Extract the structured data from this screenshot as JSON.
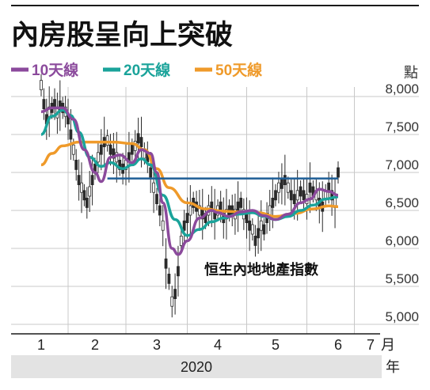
{
  "chart_data": {
    "type": "line",
    "title": "內房股呈向上突破",
    "ylabel": "點",
    "ylim": [
      5000,
      8000
    ],
    "yticks": [
      "8,000",
      "7,500",
      "7,000",
      "6,500",
      "6,000",
      "5,500",
      "5,000"
    ],
    "ytick_values": [
      8000,
      7500,
      7000,
      6500,
      6000,
      5500,
      5000
    ],
    "xticks": [
      "1",
      "2",
      "3",
      "4",
      "5",
      "6",
      "7"
    ],
    "month_unit": "月",
    "year_label": "2020",
    "year_unit": "年",
    "annotation": "恒生內地地產指數",
    "resistance_level": 6920,
    "grid": true,
    "legend_position": "top-left",
    "colors": {
      "ma10": "#8b4a9c",
      "ma20": "#1aa39a",
      "ma50": "#ef9a2a",
      "resistance": "#1e5e96",
      "candles": "#2b2b2b",
      "grid": "#c8c8c8",
      "band": "#e3e3e3"
    },
    "series": [
      {
        "name": "10天線",
        "key": "ma10",
        "points": [
          [
            0,
            7800
          ],
          [
            0.2,
            7850
          ],
          [
            0.4,
            7850
          ],
          [
            0.6,
            7700
          ],
          [
            0.8,
            7300
          ],
          [
            1.0,
            7000
          ],
          [
            1.1,
            6880
          ],
          [
            1.25,
            7200
          ],
          [
            1.4,
            7230
          ],
          [
            1.6,
            7130
          ],
          [
            1.75,
            7300
          ],
          [
            1.9,
            7250
          ],
          [
            2.0,
            7000
          ],
          [
            2.1,
            6600
          ],
          [
            2.25,
            6000
          ],
          [
            2.35,
            5920
          ],
          [
            2.5,
            6100
          ],
          [
            2.7,
            6400
          ],
          [
            2.9,
            6500
          ],
          [
            3.0,
            6470
          ],
          [
            3.2,
            6420
          ],
          [
            3.4,
            6480
          ],
          [
            3.6,
            6500
          ],
          [
            3.8,
            6430
          ],
          [
            4.0,
            6380
          ],
          [
            4.2,
            6450
          ],
          [
            4.4,
            6600
          ],
          [
            4.55,
            6650
          ],
          [
            4.7,
            6780
          ],
          [
            4.85,
            6750
          ],
          [
            5.0,
            6700
          ]
        ]
      },
      {
        "name": "20天線",
        "key": "ma20",
        "points": [
          [
            0,
            7500
          ],
          [
            0.2,
            7740
          ],
          [
            0.4,
            7820
          ],
          [
            0.55,
            7750
          ],
          [
            0.7,
            7530
          ],
          [
            0.9,
            7200
          ],
          [
            1.1,
            7080
          ],
          [
            1.25,
            7130
          ],
          [
            1.45,
            7050
          ],
          [
            1.6,
            7100
          ],
          [
            1.75,
            7180
          ],
          [
            1.9,
            7100
          ],
          [
            2.1,
            6700
          ],
          [
            2.3,
            6380
          ],
          [
            2.5,
            6170
          ],
          [
            2.7,
            6250
          ],
          [
            2.9,
            6350
          ],
          [
            3.1,
            6400
          ],
          [
            3.35,
            6450
          ],
          [
            3.6,
            6470
          ],
          [
            3.8,
            6420
          ],
          [
            4.0,
            6380
          ],
          [
            4.2,
            6420
          ],
          [
            4.4,
            6500
          ],
          [
            4.6,
            6570
          ],
          [
            4.8,
            6650
          ],
          [
            5.0,
            6680
          ]
        ]
      },
      {
        "name": "50天線",
        "key": "ma50",
        "points": [
          [
            0,
            7100
          ],
          [
            0.2,
            7250
          ],
          [
            0.4,
            7350
          ],
          [
            0.7,
            7400
          ],
          [
            1.0,
            7400
          ],
          [
            1.3,
            7400
          ],
          [
            1.6,
            7380
          ],
          [
            1.8,
            7300
          ],
          [
            2.0,
            7050
          ],
          [
            2.2,
            6800
          ],
          [
            2.5,
            6600
          ],
          [
            2.8,
            6520
          ],
          [
            3.1,
            6490
          ],
          [
            3.4,
            6480
          ],
          [
            3.7,
            6470
          ],
          [
            4.0,
            6420
          ],
          [
            4.3,
            6460
          ],
          [
            4.6,
            6520
          ],
          [
            4.85,
            6560
          ],
          [
            5.0,
            6550
          ]
        ]
      }
    ],
    "candles": [
      [
        0.0,
        8150
      ],
      [
        0.05,
        7900
      ],
      [
        0.1,
        7700
      ],
      [
        0.15,
        7800
      ],
      [
        0.2,
        7850
      ],
      [
        0.25,
        7900
      ],
      [
        0.3,
        7780
      ],
      [
        0.35,
        7880
      ],
      [
        0.4,
        7850
      ],
      [
        0.45,
        7800
      ],
      [
        0.5,
        7700
      ],
      [
        0.55,
        7500
      ],
      [
        0.6,
        7300
      ],
      [
        0.65,
        7100
      ],
      [
        0.7,
        6900
      ],
      [
        0.75,
        6800
      ],
      [
        0.8,
        6700
      ],
      [
        0.85,
        6600
      ],
      [
        0.9,
        6750
      ],
      [
        0.95,
        6900
      ],
      [
        1.0,
        7050
      ],
      [
        1.05,
        7200
      ],
      [
        1.1,
        7300
      ],
      [
        1.15,
        7400
      ],
      [
        1.2,
        7420
      ],
      [
        1.25,
        7300
      ],
      [
        1.3,
        7250
      ],
      [
        1.35,
        7200
      ],
      [
        1.4,
        7100
      ],
      [
        1.45,
        7050
      ],
      [
        1.5,
        7100
      ],
      [
        1.55,
        7200
      ],
      [
        1.6,
        7300
      ],
      [
        1.65,
        7350
      ],
      [
        1.7,
        7450
      ],
      [
        1.75,
        7400
      ],
      [
        1.8,
        7250
      ],
      [
        1.85,
        7200
      ],
      [
        1.9,
        7000
      ],
      [
        1.95,
        6800
      ],
      [
        2.0,
        6650
      ],
      [
        2.05,
        6500
      ],
      [
        2.1,
        6300
      ],
      [
        2.15,
        5800
      ],
      [
        2.2,
        5600
      ],
      [
        2.25,
        5300
      ],
      [
        2.3,
        5400
      ],
      [
        2.35,
        5700
      ],
      [
        2.4,
        6100
      ],
      [
        2.45,
        6300
      ],
      [
        2.5,
        6400
      ],
      [
        2.55,
        6500
      ],
      [
        2.6,
        6600
      ],
      [
        2.65,
        6550
      ],
      [
        2.7,
        6500
      ],
      [
        2.75,
        6450
      ],
      [
        2.8,
        6400
      ],
      [
        2.85,
        6500
      ],
      [
        2.9,
        6550
      ],
      [
        2.95,
        6450
      ],
      [
        3.0,
        6500
      ],
      [
        3.05,
        6550
      ],
      [
        3.1,
        6400
      ],
      [
        3.15,
        6450
      ],
      [
        3.2,
        6500
      ],
      [
        3.25,
        6500
      ],
      [
        3.3,
        6450
      ],
      [
        3.35,
        6550
      ],
      [
        3.4,
        6600
      ],
      [
        3.45,
        6450
      ],
      [
        3.5,
        6400
      ],
      [
        3.55,
        6300
      ],
      [
        3.6,
        6250
      ],
      [
        3.65,
        6100
      ],
      [
        3.7,
        6200
      ],
      [
        3.75,
        6300
      ],
      [
        3.8,
        6250
      ],
      [
        3.85,
        6400
      ],
      [
        3.9,
        6500
      ],
      [
        3.95,
        6600
      ],
      [
        4.0,
        6700
      ],
      [
        4.05,
        6800
      ],
      [
        4.1,
        6850
      ],
      [
        4.15,
        6900
      ],
      [
        4.2,
        6800
      ],
      [
        4.25,
        6700
      ],
      [
        4.3,
        6650
      ],
      [
        4.35,
        6700
      ],
      [
        4.4,
        6750
      ],
      [
        4.45,
        6700
      ],
      [
        4.5,
        6650
      ],
      [
        4.55,
        6800
      ],
      [
        4.6,
        6750
      ],
      [
        4.65,
        6700
      ],
      [
        4.7,
        6600
      ],
      [
        4.75,
        6550
      ],
      [
        4.8,
        6700
      ],
      [
        4.85,
        6800
      ],
      [
        4.9,
        6700
      ],
      [
        4.95,
        6600
      ],
      [
        5.0,
        7000
      ]
    ]
  }
}
